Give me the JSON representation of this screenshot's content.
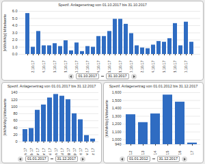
{
  "chart_data": [
    {
      "type": "bar",
      "title": "Spezif. Anlagenertrag von 01.10.2017 bis 31.10.2017",
      "y_label": "[kWh/kWp] Mittelwerte",
      "categories": [
        null,
        "02.10.17",
        null,
        "04.10.17",
        null,
        "06.10.17",
        null,
        "08.10.17",
        null,
        "10.10.17",
        null,
        "12.10.17",
        null,
        "14.10.17",
        null,
        "16.10.17",
        null,
        "18.10.17",
        null,
        "20.10.17",
        null,
        "22.10.17",
        null,
        "24.10.17",
        null,
        "26.10.17",
        null,
        "28.10.17",
        null,
        "30.10.17",
        null
      ],
      "values": [
        5.7,
        1.0,
        3.2,
        1.2,
        1.2,
        1.5,
        1.1,
        1.9,
        0.5,
        1.6,
        0.4,
        1.1,
        1.0,
        2.5,
        2.5,
        3.2,
        4.9,
        4.9,
        4.2,
        2.9,
        1.2,
        0.9,
        0.8,
        1.3,
        1.8,
        1.7,
        2.2,
        4.3,
        1.2,
        4.5,
        1.7
      ],
      "color": "#2f6cc2",
      "ylim": [
        0,
        6
      ],
      "yticks": [
        0,
        1,
        2,
        3,
        4,
        5,
        6
      ],
      "grid": true,
      "date_range": [
        "01.10.2017",
        "31.10.2017"
      ]
    },
    {
      "type": "bar",
      "title": "Spezif. Anlagenertrag von 01.01.2017 bis 31.12.2017",
      "y_label": "[kWh/kWp] Mittelwerte",
      "categories": [
        "Jan 17",
        "Feb 17",
        "Mär 17",
        "Apr 17",
        "Mai 17",
        "Jun 17",
        "Jul 17",
        "Aug 17",
        "Sep 17",
        "Okt 17",
        "Nov 17",
        "Dez 17"
      ],
      "values": [
        35,
        38,
        90,
        105,
        125,
        135,
        130,
        120,
        80,
        63,
        18,
        8
      ],
      "color": "#2f6cc2",
      "ylim": [
        0,
        140
      ],
      "yticks": [
        0,
        20,
        40,
        60,
        80,
        100,
        120,
        140
      ],
      "grid": true,
      "date_range": [
        "01.01.2017",
        "31.12.2017"
      ]
    },
    {
      "type": "bar",
      "title": "Spezif. Anlagenertrag von 01.01.2012 bis 31.12.2017",
      "y_label": "[kWh/kWp] Mittelwerte",
      "categories": [
        "2012",
        "2013",
        "2014",
        "2015",
        "2016",
        "2017"
      ],
      "values": [
        1320,
        1220,
        1330,
        1570,
        1480,
        960
      ],
      "color": "#2f6cc2",
      "ylim": [
        940,
        1600
      ],
      "yticks": [
        940,
        1000,
        1100,
        1200,
        1300,
        1400,
        1500,
        1600
      ],
      "grid": true,
      "date_range": [
        "01.01.2012",
        "31.12.2017"
      ]
    }
  ]
}
